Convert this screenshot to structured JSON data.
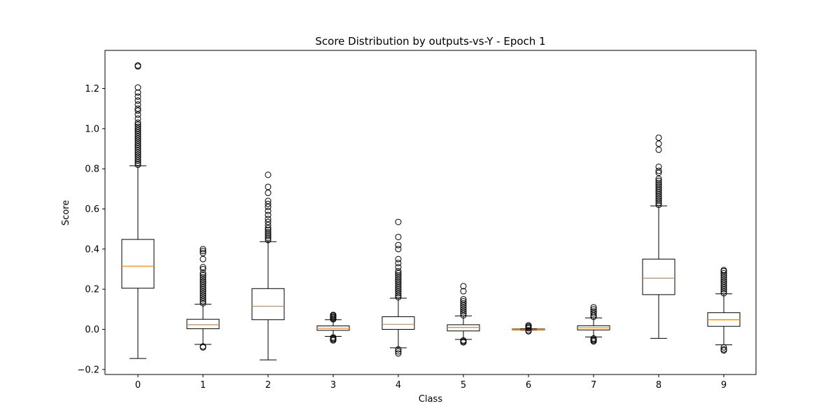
{
  "chart_data": {
    "type": "box",
    "title": "Score Distribution by outputs-vs-Y - Epoch 1",
    "xlabel": "Class",
    "ylabel": "Score",
    "ylim": [
      -0.225,
      1.39
    ],
    "y_ticks": [
      "−0.2",
      "0.0",
      "0.2",
      "0.4",
      "0.6",
      "0.8",
      "1.0",
      "1.2"
    ],
    "y_tick_values": [
      -0.2,
      0.0,
      0.2,
      0.4,
      0.6,
      0.8,
      1.0,
      1.2
    ],
    "categories": [
      "0",
      "1",
      "2",
      "3",
      "4",
      "5",
      "6",
      "7",
      "8",
      "9"
    ],
    "grid": false,
    "legend": "none",
    "colors": {
      "box": "#000000",
      "median": "#ff7f0e",
      "flier": "#000000"
    },
    "boxes": [
      {
        "category": "0",
        "whisker_low": -0.145,
        "q1": 0.205,
        "median": 0.315,
        "q3": 0.448,
        "whisker_high": 0.815,
        "fliers": [
          0.82,
          0.83,
          0.84,
          0.85,
          0.86,
          0.87,
          0.88,
          0.89,
          0.9,
          0.91,
          0.92,
          0.93,
          0.94,
          0.95,
          0.96,
          0.97,
          0.98,
          0.99,
          1.0,
          1.01,
          1.02,
          1.03,
          1.05,
          1.07,
          1.09,
          1.1,
          1.12,
          1.14,
          1.16,
          1.18,
          1.205,
          1.31,
          1.315
        ]
      },
      {
        "category": "1",
        "whisker_low": -0.075,
        "q1": 0.003,
        "median": 0.023,
        "q3": 0.05,
        "whisker_high": 0.125,
        "fliers": [
          0.13,
          0.14,
          0.15,
          0.16,
          0.17,
          0.18,
          0.19,
          0.2,
          0.21,
          0.22,
          0.23,
          0.24,
          0.25,
          0.26,
          0.27,
          0.28,
          0.3,
          0.31,
          0.35,
          0.38,
          0.39,
          0.4,
          -0.085,
          -0.09
        ]
      },
      {
        "category": "2",
        "whisker_low": -0.152,
        "q1": 0.048,
        "median": 0.115,
        "q3": 0.203,
        "whisker_high": 0.437,
        "fliers": [
          0.445,
          0.455,
          0.465,
          0.475,
          0.485,
          0.495,
          0.505,
          0.52,
          0.535,
          0.55,
          0.57,
          0.59,
          0.61,
          0.625,
          0.64,
          0.68,
          0.71,
          0.77
        ]
      },
      {
        "category": "3",
        "whisker_low": -0.035,
        "q1": -0.005,
        "median": 0.005,
        "q3": 0.017,
        "whisker_high": 0.048,
        "fliers": [
          0.05,
          0.055,
          0.06,
          0.065,
          0.07,
          0.072,
          -0.04,
          -0.045,
          -0.05,
          -0.055
        ]
      },
      {
        "category": "4",
        "whisker_low": -0.092,
        "q1": 0.0,
        "median": 0.025,
        "q3": 0.063,
        "whisker_high": 0.155,
        "fliers": [
          0.16,
          0.17,
          0.18,
          0.19,
          0.2,
          0.21,
          0.22,
          0.23,
          0.24,
          0.25,
          0.26,
          0.27,
          0.28,
          0.29,
          0.31,
          0.33,
          0.35,
          0.4,
          0.42,
          0.46,
          0.535,
          -0.1,
          -0.11,
          -0.12
        ]
      },
      {
        "category": "5",
        "whisker_low": -0.05,
        "q1": -0.008,
        "median": 0.01,
        "q3": 0.023,
        "whisker_high": 0.067,
        "fliers": [
          0.07,
          0.08,
          0.09,
          0.1,
          0.11,
          0.12,
          0.13,
          0.14,
          0.15,
          0.19,
          0.215,
          -0.055,
          -0.06,
          -0.065
        ]
      },
      {
        "category": "6",
        "whisker_low": -0.003,
        "q1": -0.002,
        "median": 0.0,
        "q3": 0.002,
        "whisker_high": 0.003,
        "fliers": [
          0.005,
          0.01,
          0.015,
          0.02,
          -0.005,
          -0.01
        ]
      },
      {
        "category": "7",
        "whisker_low": -0.038,
        "q1": -0.003,
        "median": 0.008,
        "q3": 0.018,
        "whisker_high": 0.057,
        "fliers": [
          0.062,
          0.07,
          0.08,
          0.09,
          0.1,
          0.11,
          -0.045,
          -0.05,
          -0.055,
          -0.06
        ]
      },
      {
        "category": "8",
        "whisker_low": -0.045,
        "q1": 0.173,
        "median": 0.255,
        "q3": 0.35,
        "whisker_high": 0.615,
        "fliers": [
          0.62,
          0.63,
          0.64,
          0.65,
          0.66,
          0.67,
          0.68,
          0.69,
          0.7,
          0.71,
          0.72,
          0.73,
          0.74,
          0.75,
          0.78,
          0.79,
          0.81,
          0.895,
          0.925,
          0.955
        ]
      },
      {
        "category": "9",
        "whisker_low": -0.077,
        "q1": 0.015,
        "median": 0.048,
        "q3": 0.083,
        "whisker_high": 0.177,
        "fliers": [
          0.18,
          0.19,
          0.2,
          0.21,
          0.22,
          0.23,
          0.24,
          0.25,
          0.26,
          0.27,
          0.28,
          0.29,
          0.295,
          -0.09,
          -0.1,
          -0.105
        ]
      }
    ]
  }
}
